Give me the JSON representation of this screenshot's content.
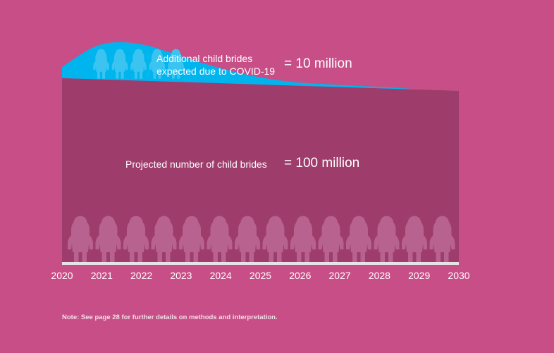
{
  "chart_data": {
    "type": "area",
    "title": "",
    "xlabel": "",
    "ylabel": "",
    "x": [
      2020,
      2021,
      2022,
      2023,
      2024,
      2025,
      2026,
      2027,
      2028,
      2029,
      2030
    ],
    "tick_labels": [
      "2020",
      "2021",
      "2022",
      "2023",
      "2024",
      "2025",
      "2026",
      "2027",
      "2028",
      "2029",
      "2030"
    ],
    "series": [
      {
        "name": "Projected number of child brides",
        "total_label": "= 100 million",
        "color": "#9e3c6b",
        "icon_color": "#b8628f",
        "icon_count": 14
      },
      {
        "name": "Additional child brides expected due to COVID-19",
        "name_lines": [
          "Additional child brides",
          "expected due to COVID-19"
        ],
        "total_label": "= 10 million",
        "color": "#00b5ee",
        "icon_color": "#3cc4f0",
        "icon_count": 5
      }
    ],
    "annotations": [
      "Additional child brides expected due to COVID-19 = 10 million",
      "Projected number of child brides = 100 million"
    ],
    "grid": false,
    "legend": "none"
  },
  "footer": {
    "note": "Note: See page 28 for further details on methods and interpretation."
  },
  "colors": {
    "background": "#c84e87",
    "baseline": "#e6e2e6"
  }
}
